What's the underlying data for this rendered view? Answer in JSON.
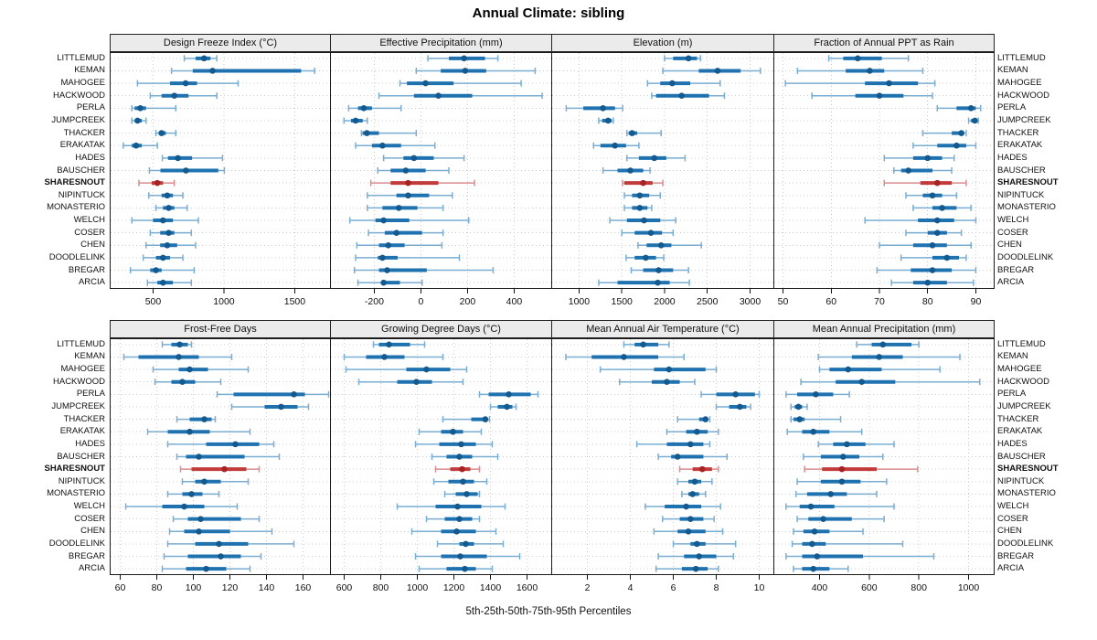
{
  "title": "Annual Climate: sibling",
  "caption": "5th-25th-50th-75th-95th Percentiles",
  "highlight_station": "SHARESNOUT",
  "percentile_labels": [
    "5th",
    "25th",
    "50th",
    "75th",
    "95th"
  ],
  "colors": {
    "blue_whisker": "#7aadd2",
    "blue_bar": "#1f72b0",
    "blue_dot": "#145a8f",
    "red_whisker": "#d98c8c",
    "red_bar": "#c23b3b",
    "red_dot": "#a62323",
    "grid": "#cccccc",
    "header_bg": "#ebebeb",
    "border": "#1a1a1a"
  },
  "stations": [
    "LITTLEMUD",
    "KEMAN",
    "MAHOGEE",
    "HACKWOOD",
    "PERLA",
    "JUMPCREEK",
    "THACKER",
    "ERAKATAK",
    "HADES",
    "BAUSCHER",
    "SHARESNOUT",
    "NIPINTUCK",
    "MONASTERIO",
    "WELCH",
    "COSER",
    "CHEN",
    "DOODLELINK",
    "BREGAR",
    "ARCIA"
  ],
  "chart_data": [
    {
      "type": "percentile-dotplot",
      "title": "Design Freeze Index (°C)",
      "slug": "design-freeze-index",
      "xlim": [
        197,
        1752
      ],
      "ticks": [
        500,
        1000,
        1500
      ],
      "values": [
        [
          720,
          800,
          860,
          905,
          950
        ],
        [
          630,
          780,
          920,
          1545,
          1640
        ],
        [
          390,
          620,
          730,
          810,
          1100
        ],
        [
          480,
          560,
          650,
          750,
          950
        ],
        [
          350,
          370,
          410,
          450,
          660
        ],
        [
          350,
          370,
          390,
          420,
          450
        ],
        [
          520,
          540,
          560,
          590,
          660
        ],
        [
          290,
          350,
          380,
          420,
          530
        ],
        [
          565,
          605,
          675,
          775,
          990
        ],
        [
          474,
          552,
          732,
          960,
          1003
        ],
        [
          400,
          490,
          530,
          570,
          650
        ],
        [
          470,
          560,
          600,
          640,
          710
        ],
        [
          520,
          570,
          610,
          650,
          740
        ],
        [
          350,
          500,
          570,
          640,
          820
        ],
        [
          480,
          550,
          610,
          650,
          770
        ],
        [
          450,
          550,
          600,
          670,
          800
        ],
        [
          430,
          520,
          570,
          620,
          710
        ],
        [
          340,
          480,
          520,
          560,
          790
        ],
        [
          460,
          530,
          570,
          640,
          770
        ]
      ]
    },
    {
      "type": "percentile-dotplot",
      "title": "Effective Precipitation (mm)",
      "slug": "effective-precipitation",
      "xlim": [
        -388,
        561
      ],
      "ticks": [
        -200,
        0,
        200,
        400
      ],
      "values": [
        [
          30,
          120,
          185,
          275,
          330
        ],
        [
          -20,
          85,
          190,
          280,
          490
        ],
        [
          -90,
          -60,
          20,
          140,
          430
        ],
        [
          -180,
          -30,
          75,
          220,
          520
        ],
        [
          -310,
          -270,
          -245,
          -210,
          -85
        ],
        [
          -330,
          -300,
          -280,
          -250,
          -230
        ],
        [
          -255,
          -250,
          -232,
          -180,
          -20
        ],
        [
          -280,
          -210,
          -165,
          -85,
          60
        ],
        [
          -160,
          -75,
          -30,
          55,
          185
        ],
        [
          -185,
          -130,
          -65,
          20,
          120
        ],
        [
          -215,
          -130,
          -55,
          75,
          230
        ],
        [
          -230,
          -105,
          -55,
          35,
          135
        ],
        [
          -230,
          -165,
          -95,
          -15,
          95
        ],
        [
          -305,
          -195,
          -160,
          -50,
          205
        ],
        [
          -225,
          -155,
          -105,
          5,
          95
        ],
        [
          -275,
          -180,
          -140,
          -70,
          90
        ],
        [
          -280,
          -185,
          -165,
          -100,
          165
        ],
        [
          -285,
          -180,
          -145,
          25,
          310
        ],
        [
          -270,
          -170,
          -160,
          -90,
          5
        ]
      ]
    },
    {
      "type": "percentile-dotplot",
      "title": "Elevation (m)",
      "slug": "elevation",
      "xlim": [
        680,
        3278
      ],
      "ticks": [
        1000,
        1500,
        2000,
        2500,
        3000
      ],
      "values": [
        [
          2000,
          2100,
          2280,
          2380,
          2420
        ],
        [
          1980,
          2400,
          2620,
          2890,
          3120
        ],
        [
          1800,
          1950,
          2090,
          2300,
          2650
        ],
        [
          1850,
          1900,
          2200,
          2520,
          2700
        ],
        [
          850,
          1050,
          1280,
          1420,
          1510
        ],
        [
          1230,
          1270,
          1340,
          1380,
          1400
        ],
        [
          1560,
          1580,
          1620,
          1680,
          1960
        ],
        [
          1170,
          1250,
          1420,
          1550,
          1700
        ],
        [
          1560,
          1700,
          1880,
          2020,
          2240
        ],
        [
          1280,
          1450,
          1600,
          1750,
          1830
        ],
        [
          1510,
          1530,
          1750,
          1860,
          1980
        ],
        [
          1530,
          1620,
          1710,
          1820,
          1950
        ],
        [
          1530,
          1620,
          1710,
          1800,
          1850
        ],
        [
          1360,
          1560,
          1760,
          1950,
          2130
        ],
        [
          1500,
          1650,
          1840,
          1970,
          2100
        ],
        [
          1690,
          1790,
          1960,
          2080,
          2430
        ],
        [
          1550,
          1650,
          1780,
          1900,
          1990
        ],
        [
          1610,
          1750,
          1930,
          2100,
          2280
        ],
        [
          1230,
          1450,
          1920,
          2060,
          2290
        ]
      ]
    },
    {
      "type": "percentile-dotplot",
      "title": "Fraction of Annual PPT as Rain",
      "slug": "fraction-ppt-rain",
      "xlim": [
        48.1,
        93.8
      ],
      "ticks": [
        50,
        60,
        70,
        80,
        90
      ],
      "values": [
        [
          59.5,
          62.5,
          65.5,
          70.5,
          76
        ],
        [
          53,
          63,
          68,
          71,
          79
        ],
        [
          50.5,
          67,
          72,
          78,
          81.5
        ],
        [
          56,
          65,
          70,
          75,
          81
        ],
        [
          82,
          86,
          89,
          90,
          91
        ],
        [
          88.5,
          89,
          89.8,
          90.3,
          90.5
        ],
        [
          79,
          85,
          87,
          87.5,
          88
        ],
        [
          77,
          82,
          86,
          88,
          90
        ],
        [
          71,
          77,
          80,
          83,
          85.5
        ],
        [
          73,
          74.5,
          76,
          81,
          85
        ],
        [
          71,
          78.5,
          82,
          85,
          88
        ],
        [
          75.5,
          79,
          81,
          83,
          86
        ],
        [
          77,
          81,
          83,
          86,
          89
        ],
        [
          67,
          78,
          82,
          85.5,
          90
        ],
        [
          75.5,
          80,
          82,
          84,
          87
        ],
        [
          70,
          77,
          81,
          84,
          89
        ],
        [
          74.5,
          81,
          84,
          86.5,
          88
        ],
        [
          69.5,
          76.5,
          81,
          85,
          90
        ],
        [
          72.5,
          77,
          80,
          84,
          89.5
        ]
      ]
    },
    {
      "type": "percentile-dotplot",
      "title": "Frost-Free Days",
      "slug": "frost-free-days",
      "xlim": [
        54.5,
        175
      ],
      "ticks": [
        60,
        80,
        100,
        120,
        140,
        160
      ],
      "values": [
        [
          83,
          88,
          92.5,
          97,
          99
        ],
        [
          62,
          70,
          92,
          103,
          121
        ],
        [
          78,
          92,
          98,
          108,
          130
        ],
        [
          79,
          88,
          94,
          101,
          115
        ],
        [
          113,
          122,
          155,
          161,
          174
        ],
        [
          121,
          139,
          148,
          157,
          163
        ],
        [
          91,
          98,
          106,
          110,
          112
        ],
        [
          75,
          86,
          98,
          109,
          131
        ],
        [
          86,
          107,
          123,
          136,
          144
        ],
        [
          91,
          96,
          103,
          128,
          147
        ],
        [
          93,
          99,
          117,
          129,
          136
        ],
        [
          94,
          101,
          106,
          115,
          130
        ],
        [
          86,
          94,
          99,
          105,
          114
        ],
        [
          63,
          83,
          95,
          106,
          124
        ],
        [
          89,
          97,
          104,
          126,
          136
        ],
        [
          87,
          95,
          103,
          120,
          143
        ],
        [
          86,
          101,
          114,
          130,
          155
        ],
        [
          84,
          97,
          115,
          126,
          137
        ],
        [
          83,
          96,
          107,
          118,
          131
        ]
      ]
    },
    {
      "type": "percentile-dotplot",
      "title": "Growing Degree Days (°C)",
      "slug": "growing-degree-days",
      "xlim": [
        525,
        1735
      ],
      "ticks": [
        600,
        800,
        1000,
        1200,
        1400,
        1600
      ],
      "values": [
        [
          760,
          790,
          845,
          960,
          1040
        ],
        [
          600,
          720,
          820,
          930,
          1140
        ],
        [
          610,
          940,
          1050,
          1180,
          1270
        ],
        [
          680,
          890,
          995,
          1080,
          1250
        ],
        [
          1340,
          1390,
          1500,
          1620,
          1660
        ],
        [
          1400,
          1440,
          1490,
          1520,
          1540
        ],
        [
          1140,
          1295,
          1372,
          1385,
          1395
        ],
        [
          1010,
          1130,
          1195,
          1250,
          1350
        ],
        [
          990,
          1120,
          1240,
          1320,
          1410
        ],
        [
          1080,
          1160,
          1230,
          1300,
          1440
        ],
        [
          1100,
          1180,
          1245,
          1290,
          1340
        ],
        [
          1090,
          1170,
          1250,
          1310,
          1380
        ],
        [
          1150,
          1210,
          1270,
          1330,
          1340
        ],
        [
          890,
          1100,
          1220,
          1350,
          1480
        ],
        [
          1050,
          1150,
          1230,
          1300,
          1340
        ],
        [
          970,
          1130,
          1215,
          1320,
          1430
        ],
        [
          1110,
          1230,
          1265,
          1310,
          1470
        ],
        [
          990,
          1130,
          1235,
          1380,
          1560
        ],
        [
          1010,
          1160,
          1260,
          1320,
          1410
        ]
      ]
    },
    {
      "type": "percentile-dotplot",
      "title": "Mean Annual Air Temperature (°C)",
      "slug": "mean-annual-air-temperature",
      "xlim": [
        0.34,
        10.68
      ],
      "ticks": [
        2,
        4,
        6,
        8,
        10
      ],
      "values": [
        [
          3.7,
          4.2,
          4.6,
          5.3,
          5.8
        ],
        [
          1.0,
          2.2,
          3.7,
          5.3,
          6.5
        ],
        [
          2.6,
          5.1,
          5.8,
          7.5,
          8.0
        ],
        [
          3.5,
          5.0,
          5.7,
          6.3,
          7.0
        ],
        [
          7.3,
          8.0,
          8.9,
          9.8,
          10.0
        ],
        [
          8.0,
          8.6,
          9.1,
          9.4,
          9.6
        ],
        [
          6.2,
          7.2,
          7.5,
          7.6,
          7.7
        ],
        [
          5.7,
          6.6,
          7.1,
          7.6,
          8.1
        ],
        [
          4.3,
          5.7,
          6.8,
          7.4,
          7.7
        ],
        [
          5.3,
          5.9,
          6.2,
          7.4,
          8.5
        ],
        [
          6.3,
          6.9,
          7.35,
          7.8,
          8.1
        ],
        [
          6.2,
          6.7,
          7.0,
          7.3,
          7.8
        ],
        [
          6.4,
          6.7,
          6.9,
          7.2,
          7.5
        ],
        [
          4.7,
          5.6,
          6.6,
          7.3,
          8.2
        ],
        [
          5.5,
          6.3,
          6.8,
          7.4,
          7.9
        ],
        [
          5.1,
          6.2,
          6.7,
          7.5,
          8.3
        ],
        [
          6.0,
          6.8,
          7.1,
          7.5,
          8.9
        ],
        [
          5.3,
          6.5,
          7.2,
          8.0,
          8.8
        ],
        [
          5.2,
          6.4,
          7.05,
          7.6,
          8.1
        ]
      ]
    },
    {
      "type": "percentile-dotplot",
      "title": "Mean Annual Precipitation (mm)",
      "slug": "mean-annual-precipitation",
      "xlim": [
        216,
        1103
      ],
      "ticks": [
        400,
        600,
        800,
        1000
      ],
      "values": [
        [
          550,
          610,
          655,
          770,
          800
        ],
        [
          395,
          530,
          640,
          735,
          965
        ],
        [
          400,
          440,
          515,
          650,
          885
        ],
        [
          325,
          465,
          570,
          705,
          1045
        ],
        [
          265,
          310,
          385,
          455,
          520
        ],
        [
          285,
          300,
          315,
          330,
          350
        ],
        [
          285,
          295,
          320,
          340,
          485
        ],
        [
          270,
          330,
          375,
          440,
          570
        ],
        [
          395,
          455,
          510,
          585,
          700
        ],
        [
          335,
          405,
          495,
          560,
          655
        ],
        [
          340,
          410,
          490,
          630,
          795
        ],
        [
          310,
          405,
          490,
          565,
          670
        ],
        [
          305,
          350,
          445,
          510,
          630
        ],
        [
          265,
          320,
          365,
          460,
          700
        ],
        [
          310,
          355,
          415,
          530,
          660
        ],
        [
          295,
          335,
          380,
          440,
          575
        ],
        [
          290,
          330,
          370,
          425,
          735
        ],
        [
          265,
          330,
          390,
          575,
          860
        ],
        [
          295,
          330,
          375,
          440,
          515
        ]
      ]
    }
  ]
}
